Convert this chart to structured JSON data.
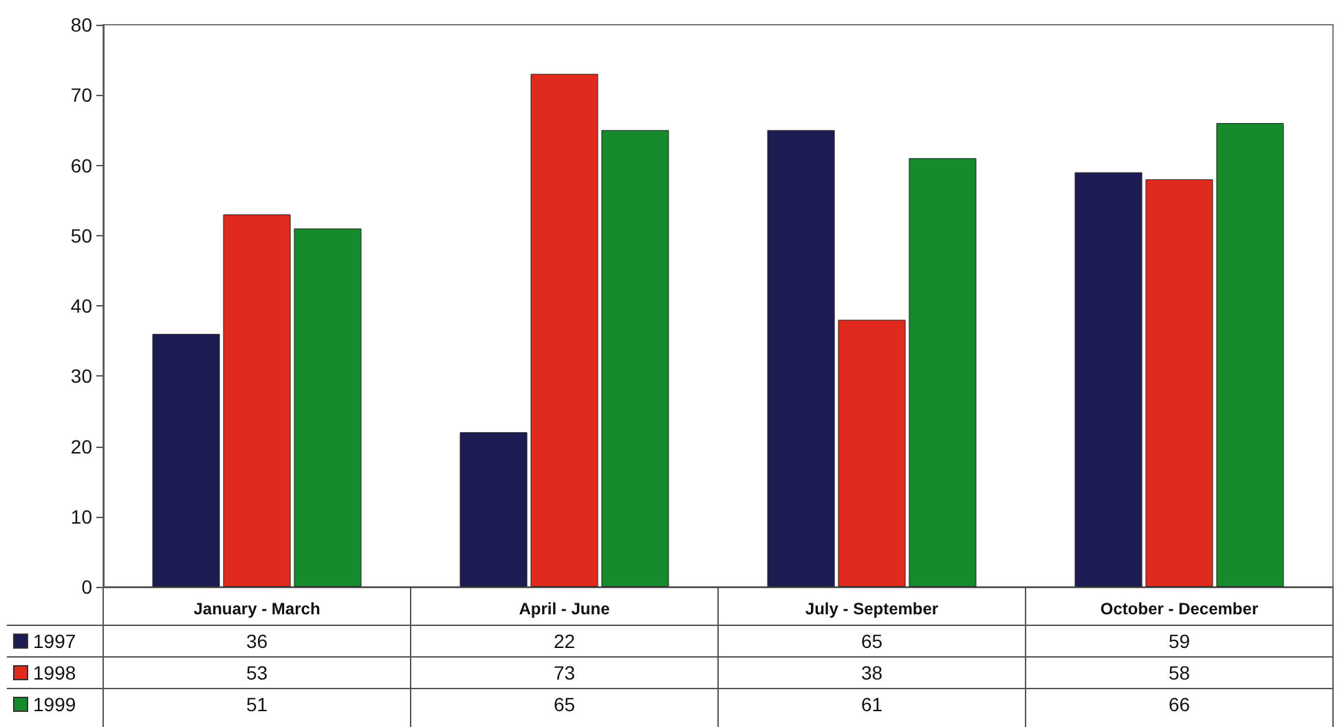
{
  "chart_data": {
    "type": "bar",
    "categories": [
      "January - March",
      "April - June",
      "July - September",
      "October - December"
    ],
    "series": [
      {
        "name": "1997",
        "color": "#1c1c52",
        "values": [
          36,
          22,
          65,
          59
        ]
      },
      {
        "name": "1998",
        "color": "#e02a1e",
        "values": [
          53,
          73,
          38,
          58
        ]
      },
      {
        "name": "1999",
        "color": "#168a2c",
        "values": [
          51,
          65,
          61,
          66
        ]
      }
    ],
    "ylim": [
      0,
      80
    ],
    "yticks": [
      0,
      10,
      20,
      30,
      40,
      50,
      60,
      70,
      80
    ],
    "grid": false,
    "legend": "bottom",
    "data_labels": true
  }
}
